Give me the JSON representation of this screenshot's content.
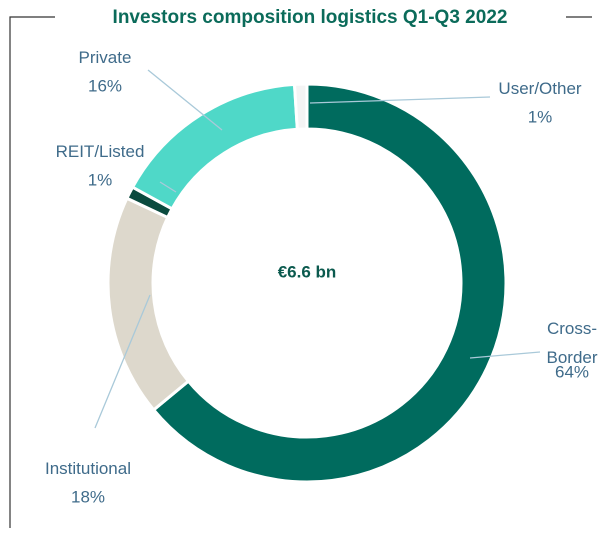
{
  "chart_data": {
    "type": "donut",
    "title": "Investors composition logistics Q1-Q3 2022",
    "center_label": "€6.6 bn",
    "categories": [
      "Cross-Border",
      "Institutional",
      "REIT/Listed",
      "Private",
      "User/Other"
    ],
    "values": [
      64,
      18,
      1,
      16,
      1
    ],
    "value_labels": [
      "64%",
      "18%",
      "1%",
      "16%",
      "1%"
    ],
    "colors": [
      "#006b5e",
      "#ddd8cc",
      "#0a4a3e",
      "#4fd8c8",
      "#f4f4f4"
    ]
  }
}
